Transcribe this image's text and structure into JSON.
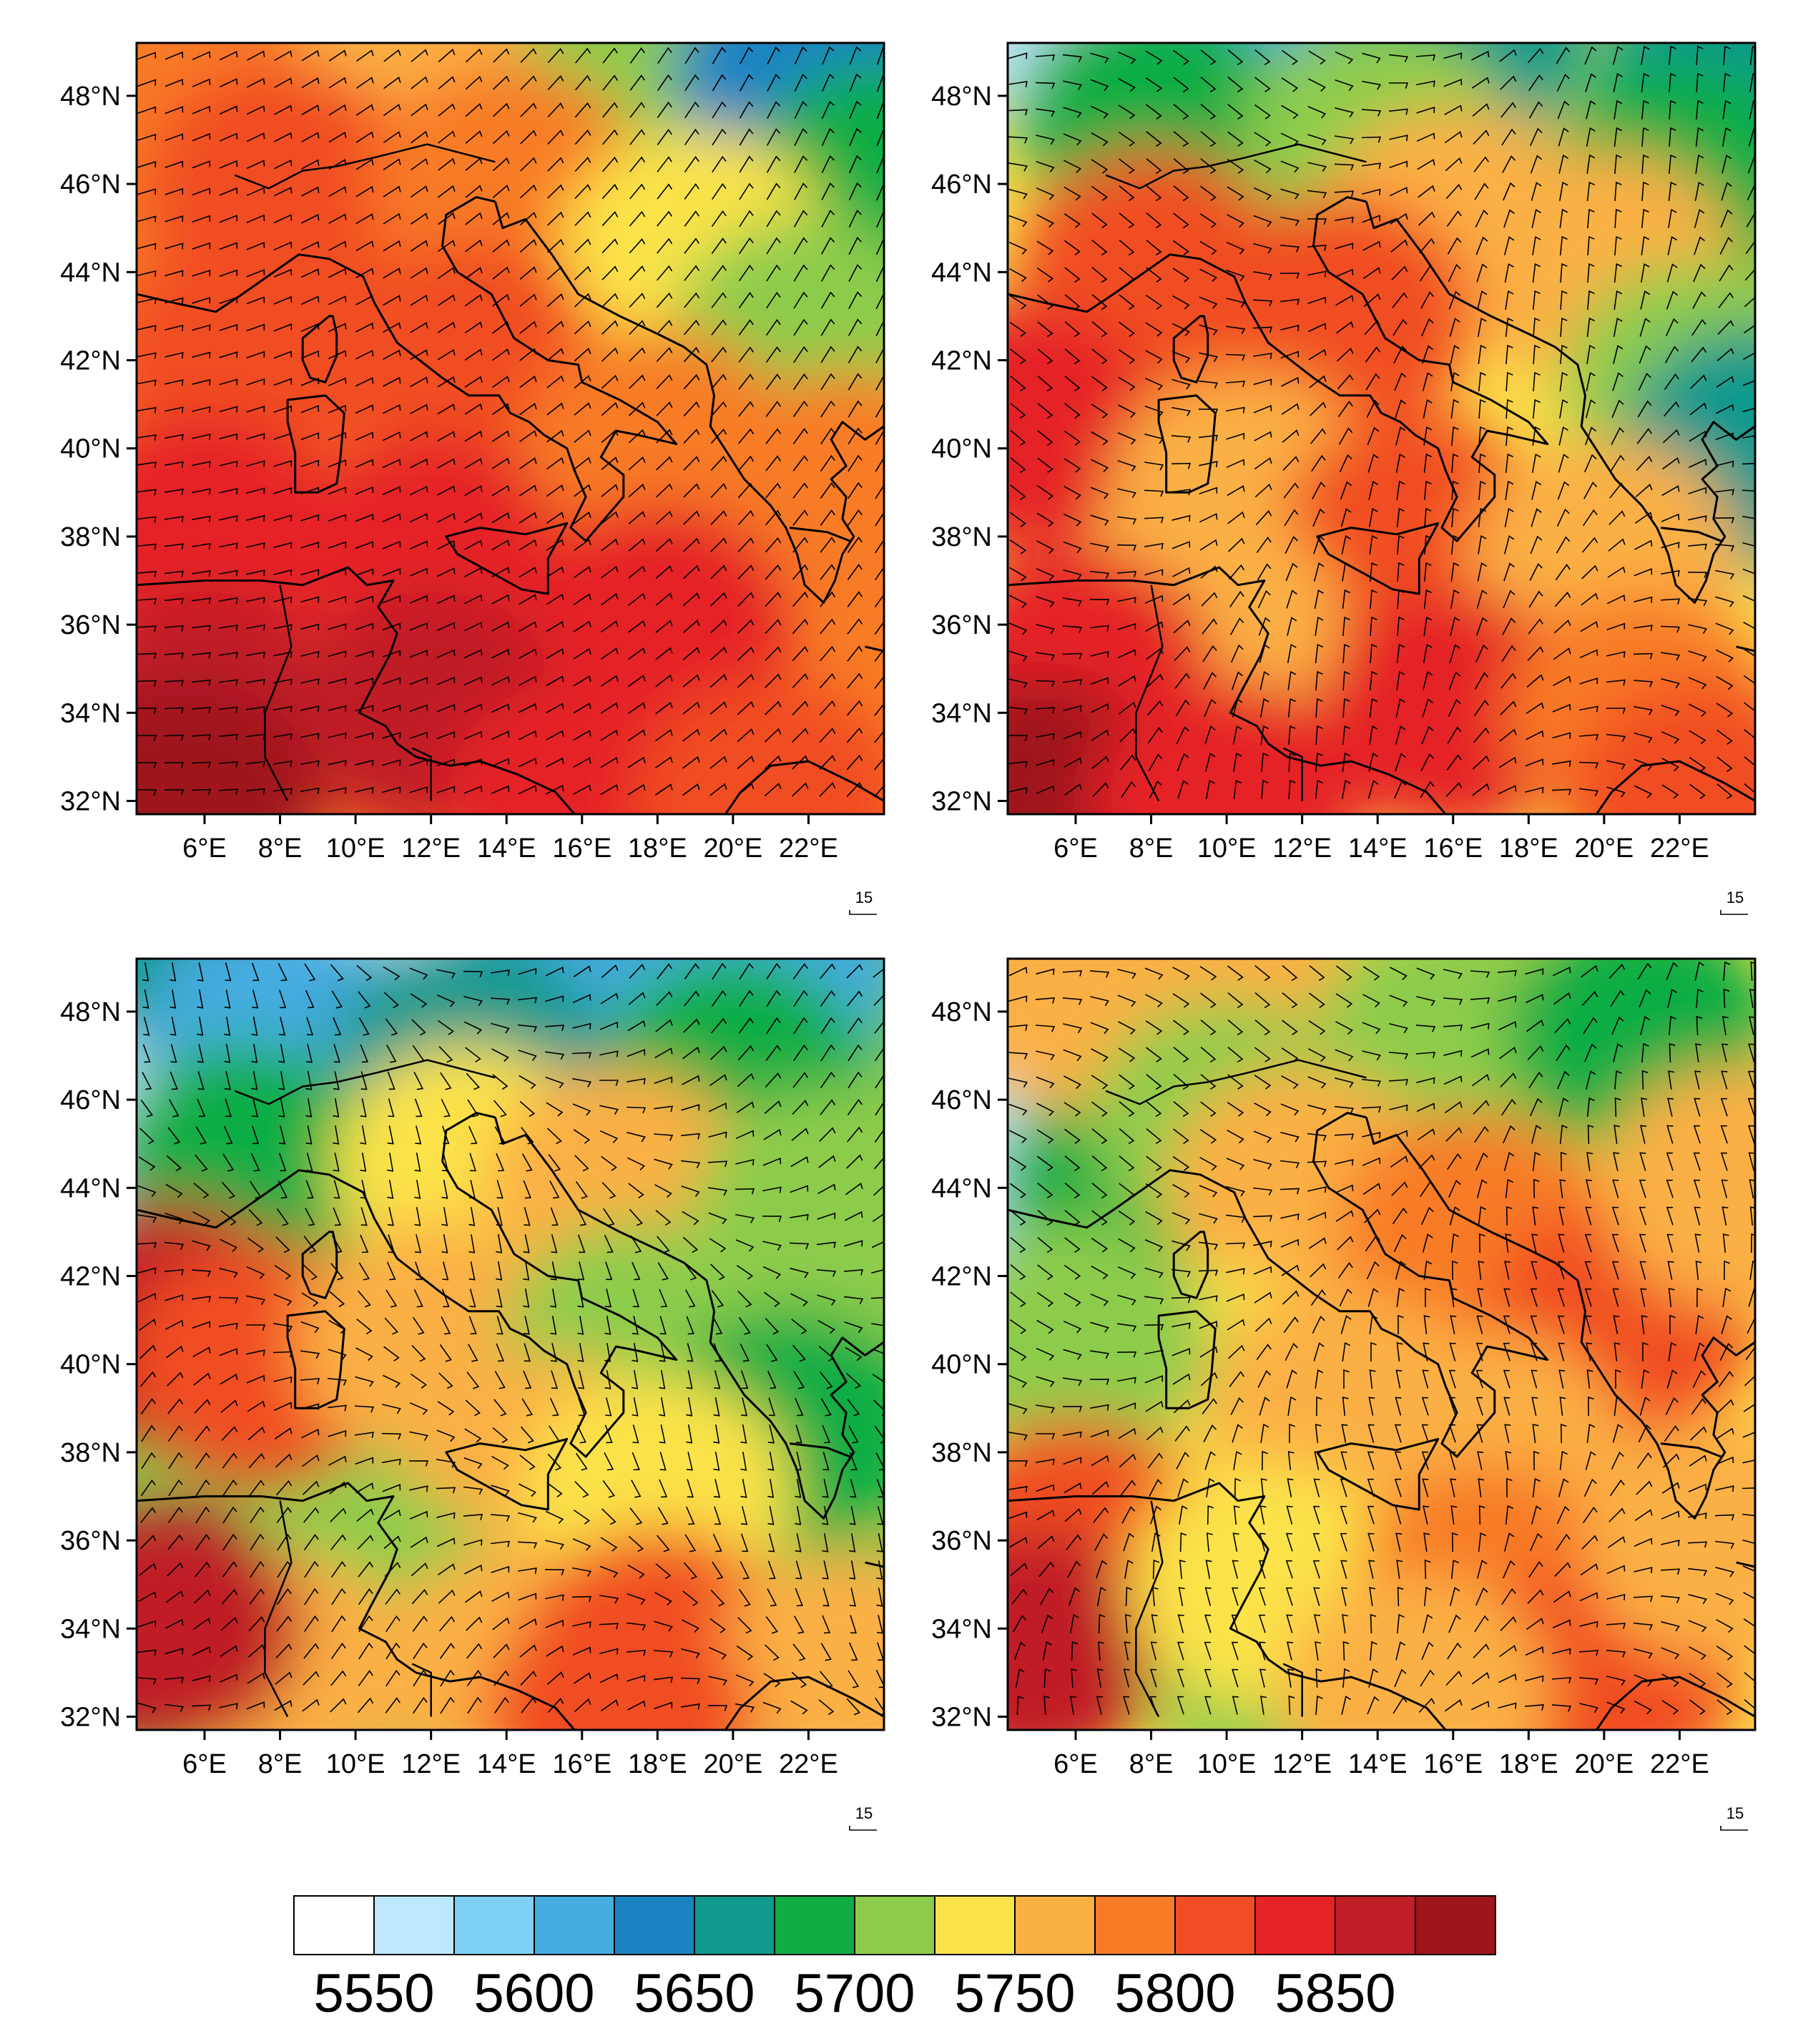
{
  "chart_data": [
    {
      "type": "map",
      "lat_ticks": [
        "48°N",
        "46°N",
        "44°N",
        "42°N",
        "40°N",
        "38°N",
        "36°N",
        "34°N",
        "32°N"
      ],
      "lon_ticks": [
        "6°E",
        "8°E",
        "10°E",
        "12°E",
        "14°E",
        "16°E",
        "18°E",
        "20°E",
        "22°E"
      ],
      "wind_reference": "15",
      "field_blobs": [
        {
          "lon": 4.5,
          "lat": 49.5,
          "value": 5780
        },
        {
          "lon": 12.0,
          "lat": 49.5,
          "value": 5760
        },
        {
          "lon": 18.0,
          "lat": 49.0,
          "value": 5700
        },
        {
          "lon": 22.0,
          "lat": 48.5,
          "value": 5640
        },
        {
          "lon": 24.0,
          "lat": 46.0,
          "value": 5680
        },
        {
          "lon": 8.0,
          "lat": 46.0,
          "value": 5800
        },
        {
          "lon": 14.0,
          "lat": 46.0,
          "value": 5780
        },
        {
          "lon": 19.0,
          "lat": 44.5,
          "value": 5740
        },
        {
          "lon": 22.0,
          "lat": 42.5,
          "value": 5720
        },
        {
          "lon": 7.0,
          "lat": 42.0,
          "value": 5820
        },
        {
          "lon": 13.0,
          "lat": 42.0,
          "value": 5815
        },
        {
          "lon": 18.0,
          "lat": 40.0,
          "value": 5790
        },
        {
          "lon": 23.0,
          "lat": 39.0,
          "value": 5780
        },
        {
          "lon": 6.0,
          "lat": 38.0,
          "value": 5840
        },
        {
          "lon": 12.0,
          "lat": 37.5,
          "value": 5840
        },
        {
          "lon": 18.0,
          "lat": 36.0,
          "value": 5830
        },
        {
          "lon": 6.0,
          "lat": 34.0,
          "value": 5860
        },
        {
          "lon": 12.0,
          "lat": 34.0,
          "value": 5850
        },
        {
          "lon": 5.5,
          "lat": 32.0,
          "value": 5885
        },
        {
          "lon": 16.0,
          "lat": 32.0,
          "value": 5840
        },
        {
          "lon": 21.0,
          "lat": 32.0,
          "value": 5820
        }
      ]
    },
    {
      "type": "map",
      "lat_ticks": [
        "48°N",
        "46°N",
        "44°N",
        "42°N",
        "40°N",
        "38°N",
        "36°N",
        "34°N",
        "32°N"
      ],
      "lon_ticks": [
        "6°E",
        "8°E",
        "10°E",
        "12°E",
        "14°E",
        "16°E",
        "18°E",
        "20°E",
        "22°E"
      ],
      "wind_reference": "15",
      "field_blobs": [
        {
          "lon": 6.0,
          "lat": 49.8,
          "value": 5560
        },
        {
          "lon": 10.0,
          "lat": 49.3,
          "value": 5620
        },
        {
          "lon": 16.0,
          "lat": 49.5,
          "value": 5670
        },
        {
          "lon": 23.5,
          "lat": 48.5,
          "value": 5650
        },
        {
          "lon": 8.0,
          "lat": 47.5,
          "value": 5690
        },
        {
          "lon": 14.0,
          "lat": 47.0,
          "value": 5720
        },
        {
          "lon": 22.0,
          "lat": 46.0,
          "value": 5690
        },
        {
          "lon": 16.0,
          "lat": 45.0,
          "value": 5770
        },
        {
          "lon": 20.0,
          "lat": 44.0,
          "value": 5760
        },
        {
          "lon": 22.5,
          "lat": 41.5,
          "value": 5700
        },
        {
          "lon": 24.0,
          "lat": 40.0,
          "value": 5670
        },
        {
          "lon": 8.0,
          "lat": 44.0,
          "value": 5800
        },
        {
          "lon": 13.0,
          "lat": 43.0,
          "value": 5800
        },
        {
          "lon": 4.5,
          "lat": 40.5,
          "value": 5840
        },
        {
          "lon": 10.5,
          "lat": 39.0,
          "value": 5760
        },
        {
          "lon": 15.0,
          "lat": 38.0,
          "value": 5800
        },
        {
          "lon": 20.0,
          "lat": 37.5,
          "value": 5750
        },
        {
          "lon": 9.5,
          "lat": 36.0,
          "value": 5770
        },
        {
          "lon": 6.0,
          "lat": 35.0,
          "value": 5830
        },
        {
          "lon": 16.0,
          "lat": 34.0,
          "value": 5840
        },
        {
          "lon": 21.0,
          "lat": 34.0,
          "value": 5780
        },
        {
          "lon": 5.0,
          "lat": 32.0,
          "value": 5880
        },
        {
          "lon": 10.0,
          "lat": 32.0,
          "value": 5830
        },
        {
          "lon": 22.5,
          "lat": 32.0,
          "value": 5800
        }
      ]
    },
    {
      "type": "map",
      "lat_ticks": [
        "48°N",
        "46°N",
        "44°N",
        "42°N",
        "40°N",
        "38°N",
        "36°N",
        "34°N",
        "32°N"
      ],
      "lon_ticks": [
        "6°E",
        "8°E",
        "10°E",
        "12°E",
        "14°E",
        "16°E",
        "18°E",
        "20°E",
        "22°E"
      ],
      "wind_reference": "15",
      "field_blobs": [
        {
          "lon": 5.0,
          "lat": 45.8,
          "value": 5550
        },
        {
          "lon": 6.0,
          "lat": 49.5,
          "value": 5650
        },
        {
          "lon": 11.0,
          "lat": 49.5,
          "value": 5570
        },
        {
          "lon": 16.0,
          "lat": 49.0,
          "value": 5620
        },
        {
          "lon": 21.0,
          "lat": 49.0,
          "value": 5620
        },
        {
          "lon": 8.0,
          "lat": 47.5,
          "value": 5620
        },
        {
          "lon": 13.0,
          "lat": 47.0,
          "value": 5660
        },
        {
          "lon": 20.0,
          "lat": 46.5,
          "value": 5680
        },
        {
          "lon": 7.0,
          "lat": 44.5,
          "value": 5690
        },
        {
          "lon": 13.0,
          "lat": 44.5,
          "value": 5730
        },
        {
          "lon": 17.0,
          "lat": 44.0,
          "value": 5750
        },
        {
          "lon": 22.5,
          "lat": 43.5,
          "value": 5700
        },
        {
          "lon": 5.0,
          "lat": 41.0,
          "value": 5850
        },
        {
          "lon": 7.5,
          "lat": 40.0,
          "value": 5810
        },
        {
          "lon": 12.0,
          "lat": 40.5,
          "value": 5760
        },
        {
          "lon": 17.5,
          "lat": 40.5,
          "value": 5720
        },
        {
          "lon": 21.5,
          "lat": 38.5,
          "value": 5690
        },
        {
          "lon": 15.0,
          "lat": 37.5,
          "value": 5760
        },
        {
          "lon": 18.0,
          "lat": 37.0,
          "value": 5740
        },
        {
          "lon": 10.5,
          "lat": 34.5,
          "value": 5700
        },
        {
          "lon": 8.0,
          "lat": 33.0,
          "value": 5760
        },
        {
          "lon": 5.0,
          "lat": 34.0,
          "value": 5850
        },
        {
          "lon": 14.0,
          "lat": 33.0,
          "value": 5760
        },
        {
          "lon": 18.0,
          "lat": 33.5,
          "value": 5800
        },
        {
          "lon": 23.0,
          "lat": 33.0,
          "value": 5750
        },
        {
          "lon": 17.0,
          "lat": 32.0,
          "value": 5820
        }
      ]
    },
    {
      "type": "map",
      "lat_ticks": [
        "48°N",
        "46°N",
        "44°N",
        "42°N",
        "40°N",
        "38°N",
        "36°N",
        "34°N",
        "32°N"
      ],
      "lon_ticks": [
        "6°E",
        "8°E",
        "10°E",
        "12°E",
        "14°E",
        "16°E",
        "18°E",
        "20°E",
        "22°E"
      ],
      "wind_reference": "15",
      "field_blobs": [
        {
          "lon": 5.0,
          "lat": 43.8,
          "value": 5570
        },
        {
          "lon": 7.5,
          "lat": 44.0,
          "value": 5680
        },
        {
          "lon": 6.0,
          "lat": 48.5,
          "value": 5770
        },
        {
          "lon": 10.0,
          "lat": 48.5,
          "value": 5760
        },
        {
          "lon": 16.0,
          "lat": 47.5,
          "value": 5700
        },
        {
          "lon": 21.0,
          "lat": 47.5,
          "value": 5690
        },
        {
          "lon": 10.0,
          "lat": 45.5,
          "value": 5720
        },
        {
          "lon": 12.0,
          "lat": 44.0,
          "value": 5760
        },
        {
          "lon": 16.5,
          "lat": 43.0,
          "value": 5790
        },
        {
          "lon": 20.5,
          "lat": 41.0,
          "value": 5800
        },
        {
          "lon": 23.5,
          "lat": 44.0,
          "value": 5760
        },
        {
          "lon": 9.5,
          "lat": 39.5,
          "value": 5730
        },
        {
          "lon": 6.0,
          "lat": 40.5,
          "value": 5720
        },
        {
          "lon": 13.0,
          "lat": 39.0,
          "value": 5760
        },
        {
          "lon": 17.0,
          "lat": 38.0,
          "value": 5770
        },
        {
          "lon": 6.0,
          "lat": 36.0,
          "value": 5820
        },
        {
          "lon": 4.8,
          "lat": 33.5,
          "value": 5850
        },
        {
          "lon": 11.5,
          "lat": 33.0,
          "value": 5700
        },
        {
          "lon": 11.0,
          "lat": 35.0,
          "value": 5740
        },
        {
          "lon": 17.0,
          "lat": 35.0,
          "value": 5790
        },
        {
          "lon": 20.0,
          "lat": 33.0,
          "value": 5800
        },
        {
          "lon": 15.0,
          "lat": 32.5,
          "value": 5770
        },
        {
          "lon": 23.0,
          "lat": 36.0,
          "value": 5770
        }
      ]
    }
  ],
  "colorbar": {
    "colors": [
      "#ffffff",
      "#bde8fb",
      "#7fd0f5",
      "#45ace0",
      "#1a84c3",
      "#11998d",
      "#10ad45",
      "#8dcc4b",
      "#fbe34a",
      "#fbb044",
      "#f87c25",
      "#f14d24",
      "#e52426",
      "#c01f27",
      "#9e151b"
    ],
    "labels": [
      "5550",
      "5600",
      "5650",
      "5700",
      "5750",
      "5800",
      "5850"
    ]
  }
}
